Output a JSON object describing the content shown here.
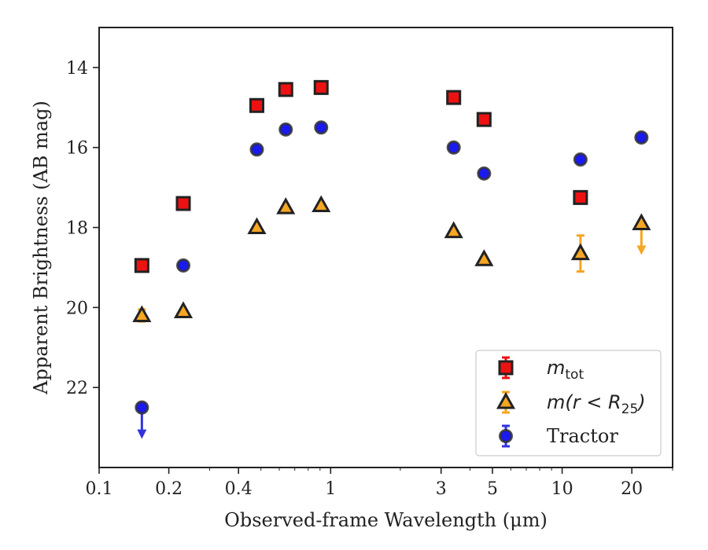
{
  "chart_data": {
    "type": "scatter",
    "xlabel": "Observed-frame Wavelength (μm)",
    "ylabel": "Apparent Brightness (AB mag)",
    "x_scale": "log",
    "xlim": [
      0.1,
      30
    ],
    "ylim": [
      24,
      13
    ],
    "y_inverted": true,
    "x_ticks": [
      {
        "value": 0.1,
        "label": "0.1"
      },
      {
        "value": 0.2,
        "label": "0.2"
      },
      {
        "value": 0.4,
        "label": "0.4"
      },
      {
        "value": 1,
        "label": "1"
      },
      {
        "value": 3,
        "label": "3"
      },
      {
        "value": 5,
        "label": "5"
      },
      {
        "value": 10,
        "label": "10"
      },
      {
        "value": 20,
        "label": "20"
      }
    ],
    "y_ticks": [
      {
        "value": 14,
        "label": "14"
      },
      {
        "value": 16,
        "label": "16"
      },
      {
        "value": 18,
        "label": "18"
      },
      {
        "value": 20,
        "label": "20"
      },
      {
        "value": 22,
        "label": "22"
      }
    ],
    "grid": false,
    "legend_position": "lower right",
    "series": [
      {
        "name": "m_tot",
        "legend": {
          "base": "m",
          "sub": "tot"
        },
        "marker": "square",
        "face_color": "#ee1111",
        "edge_color": "#222222",
        "err_color": "#ee1111",
        "points": [
          {
            "x": 0.153,
            "y": 18.95
          },
          {
            "x": 0.231,
            "y": 17.4
          },
          {
            "x": 0.48,
            "y": 14.95
          },
          {
            "x": 0.64,
            "y": 14.55
          },
          {
            "x": 0.91,
            "y": 14.5
          },
          {
            "x": 3.4,
            "y": 14.75
          },
          {
            "x": 4.6,
            "y": 15.3
          },
          {
            "x": 12.0,
            "y": 17.25
          }
        ]
      },
      {
        "name": "m(r < R25)",
        "legend": {
          "base": "m(r < R",
          "sub": "25",
          "tail": ")"
        },
        "marker": "triangle",
        "face_color": "#f5a623",
        "edge_color": "#222222",
        "err_color": "#f5a623",
        "points": [
          {
            "x": 0.153,
            "y": 20.2,
            "yerr": 0.15
          },
          {
            "x": 0.231,
            "y": 20.1
          },
          {
            "x": 0.48,
            "y": 18.0
          },
          {
            "x": 0.64,
            "y": 17.5
          },
          {
            "x": 0.91,
            "y": 17.45
          },
          {
            "x": 3.4,
            "y": 18.1
          },
          {
            "x": 4.6,
            "y": 18.8
          },
          {
            "x": 12.0,
            "y": 18.65,
            "yerr": 0.45
          },
          {
            "x": 22.0,
            "y": 17.9,
            "upper_limit": true
          }
        ]
      },
      {
        "name": "Tractor",
        "legend": {
          "base": "Tractor"
        },
        "marker": "circle",
        "face_color": "#1a1aee",
        "edge_color": "#333333",
        "err_color": "#3333dd",
        "points": [
          {
            "x": 0.153,
            "y": 22.5,
            "upper_limit": true
          },
          {
            "x": 0.231,
            "y": 18.95
          },
          {
            "x": 0.48,
            "y": 16.05
          },
          {
            "x": 0.64,
            "y": 15.55
          },
          {
            "x": 0.91,
            "y": 15.5
          },
          {
            "x": 3.4,
            "y": 16.0
          },
          {
            "x": 4.6,
            "y": 16.65
          },
          {
            "x": 12.0,
            "y": 16.3
          },
          {
            "x": 22.0,
            "y": 15.75
          }
        ]
      }
    ]
  }
}
